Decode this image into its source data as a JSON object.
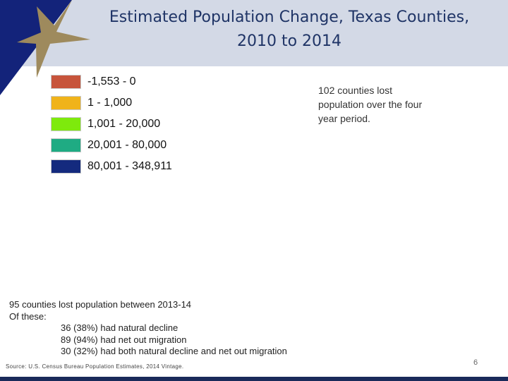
{
  "title": {
    "line1": "Estimated Population Change, Texas Counties,",
    "line2": "2010 to 2014"
  },
  "legend": {
    "items": [
      {
        "label": "-1,553 - 0",
        "color": "#c7543b"
      },
      {
        "label": "1 - 1,000",
        "color": "#f0b31a"
      },
      {
        "label": "1,001 - 20,000",
        "color": "#7eea0c"
      },
      {
        "label": "20,001 - 80,000",
        "color": "#1fab83"
      },
      {
        "label": "80,001 - 348,911",
        "color": "#142a7e"
      }
    ]
  },
  "note": "102 counties lost population over the four year period.",
  "stats": {
    "line1": "95 counties lost population between  2013-14",
    "line2": "Of these:",
    "items": [
      "36 (38%) had natural decline",
      "89 (94%) had net out migration",
      "30 (32%) had both natural decline and net out migration"
    ]
  },
  "source": "Source: U.S. Census Bureau Population Estimates, 2014 Vintage.",
  "page_number": "6",
  "colors": {
    "header_band": "#d3d9e6",
    "title_text": "#1f3466",
    "corner_blue": "#13237a",
    "star_gold": "#9e8a5d"
  },
  "icons": {
    "corner_logo": "star-icon"
  }
}
